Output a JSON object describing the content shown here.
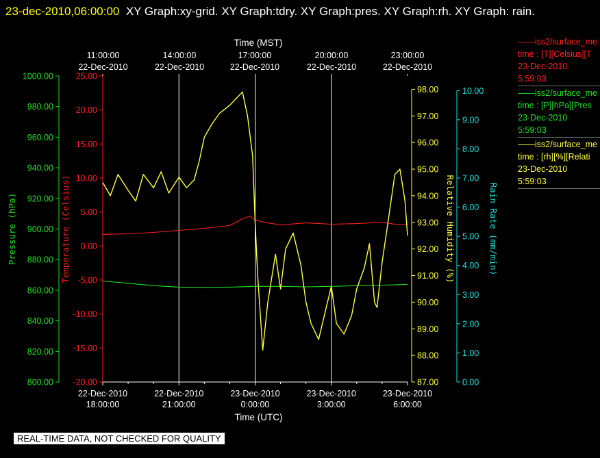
{
  "header": {
    "timestamp": "23-dec-2010,06:00:00",
    "graphs_text": "XY Graph:xy-grid.  XY Graph:tdry.  XY Graph:pres.  XY Graph:rh.  XY Graph: rain."
  },
  "notice": "REAL-TIME DATA, NOT CHECKED FOR QUALITY",
  "legend": [
    {
      "line": "iss2/surface_me",
      "label": "time : [T][Celsius][T",
      "date": "23-Dec-2010",
      "time": "5:59:03",
      "color": "#ff2020"
    },
    {
      "line": "iss2/surface_me",
      "label": "time : [P][hPa][Pres",
      "date": "23-Dec-2010",
      "time": "5:59:03",
      "color": "#20e020"
    },
    {
      "line": "iss2/surface_me",
      "label": "time : [rh][%][Relati",
      "date": "23-Dec-2010",
      "time": "5:59:03",
      "color": "#ffff40"
    }
  ],
  "chart_data": {
    "type": "line",
    "x_top": {
      "label": "Time (MST)",
      "ticks": [
        {
          "time": "11:00:00",
          "date": "22-Dec-2010"
        },
        {
          "time": "14:00:00",
          "date": "22-Dec-2010"
        },
        {
          "time": "17:00:00",
          "date": "22-Dec-2010"
        },
        {
          "time": "20:00:00",
          "date": "22-Dec-2010"
        },
        {
          "time": "23:00:00",
          "date": "22-Dec-2010"
        }
      ]
    },
    "x_bottom": {
      "label": "Time (UTC)",
      "range": [
        "22-Dec-2010 18:00:00",
        "23-Dec-2010 06:00:00"
      ],
      "ticks": [
        {
          "date": "22-Dec-2010",
          "time": "18:00:00"
        },
        {
          "date": "22-Dec-2010",
          "time": "21:00:00"
        },
        {
          "date": "23-Dec-2010",
          "time": "0:00:00"
        },
        {
          "date": "23-Dec-2010",
          "time": "3:00:00"
        },
        {
          "date": "23-Dec-2010",
          "time": "6:00:00"
        }
      ]
    },
    "grid": true,
    "axes": {
      "pressure": {
        "label": "Pressure (hPa)",
        "color": "#20e020",
        "ylim": [
          800,
          1000
        ],
        "ticks": [
          "800.00",
          "820.00",
          "840.00",
          "860.00",
          "880.00",
          "900.00",
          "920.00",
          "940.00",
          "960.00",
          "980.00",
          "1000.00"
        ]
      },
      "temperature": {
        "label": "Temperature (Celsius)",
        "color": "#ff2020",
        "ylim": [
          -20,
          25
        ],
        "ticks": [
          "-20.00",
          "-15.00",
          "-10.00",
          "-5.00",
          "0.00",
          "5.00",
          "10.00",
          "15.00",
          "20.00",
          "25.00"
        ]
      },
      "humidity": {
        "label": "Relative Humidity (%)",
        "color": "#ffff40",
        "ylim": [
          87,
          98.5
        ],
        "ticks": [
          "87.00",
          "88.00",
          "89.00",
          "90.00",
          "91.00",
          "92.00",
          "93.00",
          "94.00",
          "95.00",
          "96.00",
          "97.00",
          "98.00"
        ]
      },
      "rain": {
        "label": "Rain Rate (mm/min)",
        "color": "#20e0e0",
        "ylim": [
          0,
          10.5
        ],
        "ticks": [
          "0.00",
          "1.00",
          "2.00",
          "3.00",
          "4.00",
          "5.00",
          "6.00",
          "7.00",
          "8.00",
          "9.00",
          "10.00"
        ]
      }
    },
    "series": [
      {
        "axis": "temperature",
        "color": "#ff2020",
        "x_hours": [
          0,
          1,
          2,
          3,
          4,
          5,
          5.5,
          5.8,
          6,
          6.5,
          7,
          8,
          9,
          10,
          11,
          11.5,
          12
        ],
        "values": [
          1.7,
          1.8,
          2.0,
          2.3,
          2.6,
          3.0,
          4.0,
          4.4,
          3.8,
          3.4,
          3.1,
          3.4,
          3.2,
          3.3,
          3.5,
          3.2,
          3.2
        ]
      },
      {
        "axis": "pressure",
        "color": "#20e020",
        "x_hours": [
          0,
          1,
          2,
          3,
          4,
          5,
          6,
          7,
          8,
          9,
          10,
          11,
          12
        ],
        "values": [
          866,
          864.5,
          863,
          862,
          861.8,
          862,
          862.5,
          862.5,
          862.2,
          862.5,
          863,
          863.3,
          863.8
        ]
      },
      {
        "axis": "humidity",
        "color": "#ffff40",
        "x_hours": [
          0,
          0.3,
          0.6,
          1,
          1.3,
          1.6,
          2,
          2.3,
          2.6,
          3,
          3.3,
          3.6,
          3.8,
          4,
          4.3,
          4.6,
          5,
          5.3,
          5.5,
          5.7,
          5.9,
          6,
          6.1,
          6.3,
          6.5,
          6.8,
          7,
          7.2,
          7.5,
          7.8,
          8,
          8.2,
          8.5,
          8.8,
          9,
          9.2,
          9.5,
          9.8,
          10,
          10.3,
          10.5,
          10.7,
          10.8,
          11,
          11.2,
          11.5,
          11.7,
          11.9,
          12
        ],
        "values": [
          94.5,
          94,
          94.8,
          94.2,
          93.8,
          94.8,
          94.3,
          94.9,
          94.1,
          94.7,
          94.3,
          94.6,
          95.3,
          96.2,
          96.7,
          97.1,
          97.4,
          97.7,
          97.9,
          97.0,
          95.5,
          93.0,
          91.0,
          88.2,
          90.0,
          91.8,
          90.5,
          92.0,
          92.6,
          91.4,
          90.0,
          89.2,
          88.6,
          89.8,
          90.6,
          89.2,
          88.8,
          89.5,
          90.5,
          91.3,
          92.2,
          90.0,
          89.8,
          91.5,
          92.8,
          94.8,
          95.0,
          93.8,
          92.5
        ]
      }
    ]
  }
}
